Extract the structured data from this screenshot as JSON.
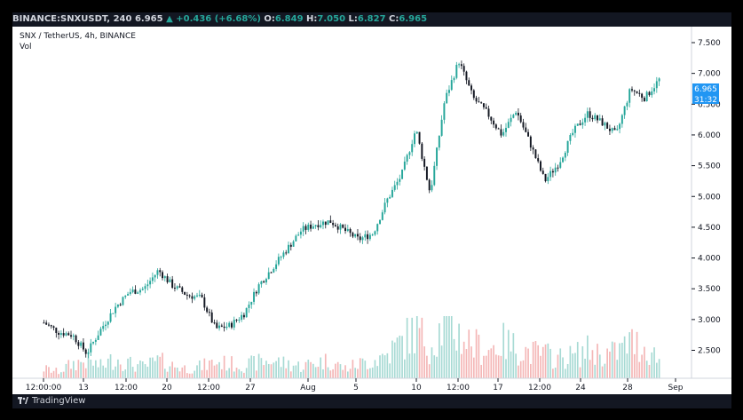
{
  "header": {
    "symbol": "BINANCE:SNXUSDT, 240",
    "last": "6.965",
    "change": "▲ +0.436 (+6.68%)",
    "o_label": "O:",
    "o": "6.849",
    "h_label": "H:",
    "h": "7.050",
    "l_label": "L:",
    "l": "6.827",
    "c_label": "C:",
    "c": "6.965"
  },
  "legend": {
    "line1": "SNX / TetherUS, 4h, BINANCE",
    "line2": "Vol"
  },
  "price_tag": "6.965",
  "countdown_tag": "31:32",
  "footer": {
    "brand": "TradingView"
  },
  "colors": {
    "up": "#26a69a",
    "down": "#131722",
    "vol_up": "#a7dad4",
    "vol_down": "#f4b6b6",
    "tag": "#2196f3"
  },
  "chart_data": {
    "type": "candlestick",
    "interval": "4h",
    "ylim": [
      2.25,
      7.6
    ],
    "y_ticks": [
      "7.500",
      "7.000",
      "6.500",
      "6.000",
      "5.500",
      "5.000",
      "4.500",
      "4.000",
      "3.500",
      "3.000",
      "2.500"
    ],
    "x_ticks": [
      "12:00:00",
      "13",
      "12:00",
      "20",
      "12:00",
      "27",
      "Aug",
      "5",
      "10",
      "12:00",
      "17",
      "12:00",
      "24",
      "28",
      "Sep"
    ],
    "close_path": [
      2.95,
      2.8,
      2.75,
      2.45,
      2.85,
      3.2,
      3.45,
      3.5,
      3.8,
      3.55,
      3.4,
      3.35,
      2.85,
      2.9,
      3.1,
      3.55,
      3.85,
      4.15,
      4.45,
      4.55,
      4.6,
      4.45,
      4.3,
      4.4,
      4.95,
      5.35,
      6.1,
      5.05,
      6.55,
      7.2,
      6.6,
      6.35,
      6.0,
      6.4,
      5.85,
      5.25,
      5.55,
      6.05,
      6.35,
      6.2,
      6.0,
      6.75,
      6.6,
      6.9
    ],
    "volume_path": [
      0.12,
      0.08,
      0.18,
      0.22,
      0.15,
      0.25,
      0.18,
      0.14,
      0.22,
      0.16,
      0.12,
      0.15,
      0.2,
      0.18,
      0.16,
      0.2,
      0.22,
      0.18,
      0.15,
      0.2,
      0.22,
      0.12,
      0.18,
      0.22,
      0.3,
      0.45,
      0.6,
      0.4,
      0.7,
      0.55,
      0.42,
      0.35,
      0.45,
      0.38,
      0.32,
      0.3,
      0.25,
      0.28,
      0.35,
      0.3,
      0.32,
      0.45,
      0.38,
      0.25
    ]
  }
}
